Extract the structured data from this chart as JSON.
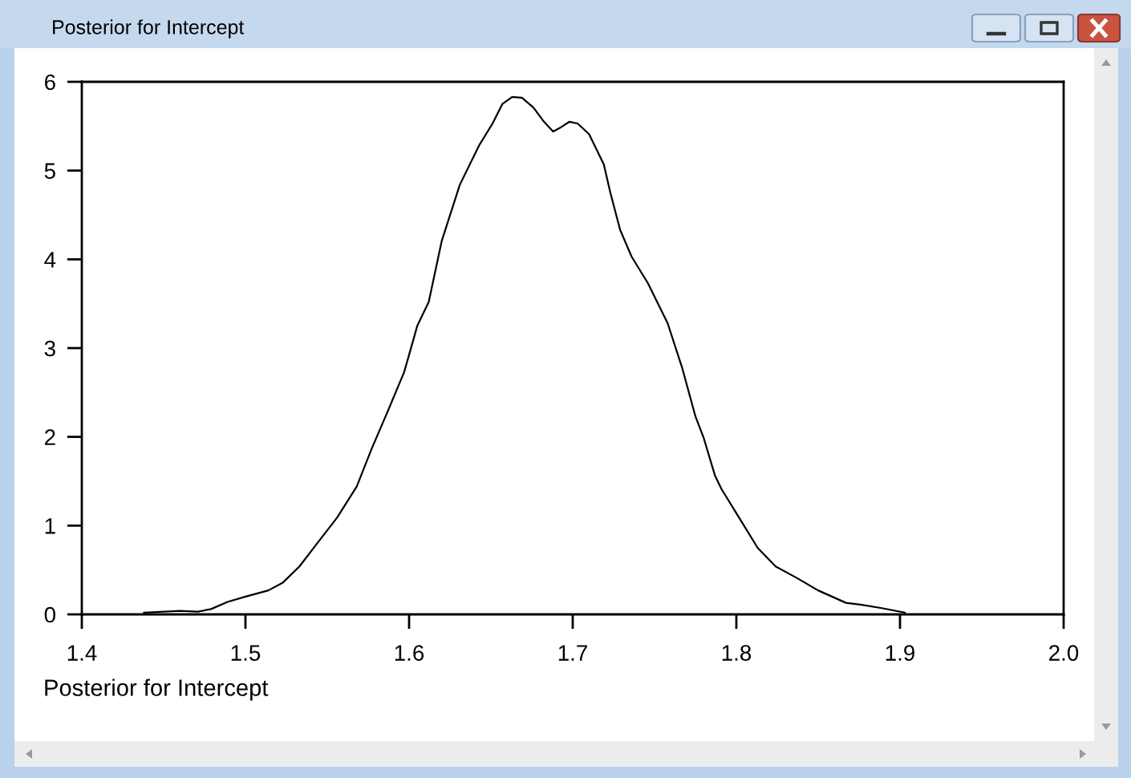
{
  "chart_data": {
    "type": "line",
    "title": "Posterior for Intercept",
    "xlabel": "Posterior for Intercept",
    "x": [
      1.438,
      1.46,
      1.471,
      1.479,
      1.489,
      1.5,
      1.514,
      1.523,
      1.533,
      1.543,
      1.556,
      1.568,
      1.577,
      1.587,
      1.597,
      1.605,
      1.612,
      1.62,
      1.631,
      1.643,
      1.651,
      1.657,
      1.663,
      1.669,
      1.676,
      1.682,
      1.688,
      1.693,
      1.698,
      1.703,
      1.71,
      1.719,
      1.723,
      1.729,
      1.736,
      1.746,
      1.758,
      1.767,
      1.775,
      1.78,
      1.787,
      1.791,
      1.801,
      1.813,
      1.824,
      1.837,
      1.85,
      1.867,
      1.876,
      1.889,
      1.903
    ],
    "values": [
      0.02,
      0.04,
      0.03,
      0.06,
      0.14,
      0.2,
      0.27,
      0.36,
      0.54,
      0.78,
      1.09,
      1.44,
      1.86,
      2.29,
      2.73,
      3.25,
      3.52,
      4.21,
      4.84,
      5.29,
      5.53,
      5.75,
      5.83,
      5.82,
      5.71,
      5.56,
      5.44,
      5.49,
      5.55,
      5.53,
      5.41,
      5.07,
      4.75,
      4.33,
      4.03,
      3.73,
      3.28,
      2.77,
      2.23,
      1.99,
      1.56,
      1.41,
      1.11,
      0.75,
      0.54,
      0.41,
      0.27,
      0.13,
      0.11,
      0.07,
      0.02
    ],
    "color": "#000000",
    "xlim": [
      1.4,
      2.0
    ],
    "ylim": [
      0,
      6
    ],
    "xticks": [
      1.4,
      1.5,
      1.6,
      1.7,
      1.8,
      1.9,
      {
        "value": 2.0,
        "label": "2.0"
      }
    ],
    "yticks": [
      0,
      1,
      2,
      3,
      4,
      5,
      6
    ]
  }
}
